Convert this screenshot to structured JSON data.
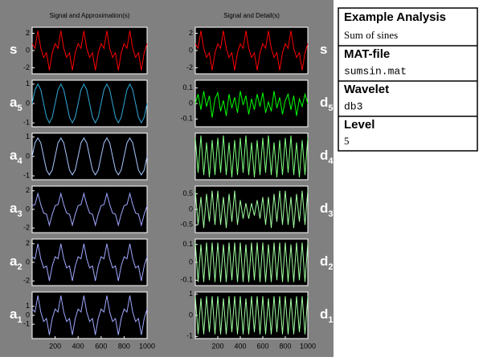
{
  "info": {
    "title": "Example Analysis",
    "subtitle": "Sum of sines",
    "file_label": "MAT-file",
    "file": "sumsin.mat",
    "wavelet_label": "Wavelet",
    "wavelet": "db3",
    "level_label": "Level",
    "level": "5"
  },
  "chart_data": [
    {
      "type": "line",
      "title": "Signal and Approximation(s)",
      "label": "s",
      "color": "#ff0000",
      "xlim": [
        0,
        1000
      ],
      "ylim": [
        -2.7,
        2.7
      ],
      "yticks": [
        -2,
        0,
        2
      ],
      "x": [
        0,
        25,
        50,
        75,
        100,
        125,
        150,
        175,
        200,
        225,
        250,
        275,
        300,
        325,
        350,
        375,
        400,
        425,
        450,
        475,
        500,
        525,
        550,
        575,
        600,
        625,
        650,
        675,
        700,
        725,
        750,
        775,
        800,
        825,
        850,
        875,
        900,
        925,
        950,
        975,
        1000
      ],
      "values": [
        0.8,
        0.26,
        2.3,
        0.26,
        -0.8,
        -0.26,
        -2.3,
        -0.26,
        0.8,
        0.26,
        2.3,
        0.26,
        -0.8,
        -0.26,
        -2.3,
        -0.26,
        0.8,
        0.26,
        2.3,
        0.26,
        -0.8,
        -0.26,
        -2.3,
        -0.26,
        0.8,
        0.26,
        2.3,
        0.26,
        -0.8,
        -0.26,
        -2.3,
        -0.26,
        0.8,
        0.26,
        2.3,
        0.26,
        -0.8,
        -0.26,
        -2.3,
        -0.26,
        0.8
      ]
    },
    {
      "type": "line",
      "label": "a",
      "sub": "5",
      "color": "#30a8d8",
      "xlim": [
        0,
        1000
      ],
      "ylim": [
        -1.2,
        1.2
      ],
      "yticks": [
        -1,
        0,
        1
      ],
      "x": [
        0,
        25,
        50,
        75,
        100,
        125,
        150,
        175,
        200,
        225,
        250,
        275,
        300,
        325,
        350,
        375,
        400,
        425,
        450,
        475,
        500,
        525,
        550,
        575,
        600,
        625,
        650,
        675,
        700,
        725,
        750,
        775,
        800,
        825,
        850,
        875,
        900,
        925,
        950,
        975,
        1000
      ],
      "values": [
        0,
        0.71,
        1,
        0.71,
        0,
        -0.71,
        -1,
        -0.71,
        0,
        0.71,
        1,
        0.71,
        0,
        -0.71,
        -1,
        -0.71,
        0,
        0.71,
        1,
        0.71,
        0,
        -0.71,
        -1,
        -0.71,
        0,
        0.71,
        1,
        0.71,
        0,
        -0.71,
        -1,
        -0.71,
        0,
        0.71,
        1,
        0.71,
        0,
        -0.71,
        -1,
        -0.71,
        0
      ]
    },
    {
      "type": "line",
      "label": "a",
      "sub": "4",
      "color": "#a8c8ff",
      "xlim": [
        0,
        1000
      ],
      "ylim": [
        -1.2,
        1.2
      ],
      "yticks": [
        -1,
        0,
        1
      ],
      "x": [
        0,
        25,
        50,
        75,
        100,
        125,
        150,
        175,
        200,
        225,
        250,
        275,
        300,
        325,
        350,
        375,
        400,
        425,
        450,
        475,
        500,
        525,
        550,
        575,
        600,
        625,
        650,
        675,
        700,
        725,
        750,
        775,
        800,
        825,
        850,
        875,
        900,
        925,
        950,
        975,
        1000
      ],
      "values": [
        0,
        0.7,
        0.95,
        0.7,
        0,
        -0.7,
        -0.95,
        -0.7,
        0,
        0.7,
        0.95,
        0.7,
        0,
        -0.7,
        -0.95,
        -0.7,
        0,
        0.7,
        0.95,
        0.7,
        0,
        -0.7,
        -0.95,
        -0.7,
        0,
        0.7,
        0.95,
        0.7,
        0,
        -0.7,
        -0.95,
        -0.7,
        0,
        0.7,
        0.95,
        0.7,
        0,
        -0.7,
        -0.95,
        -0.7,
        0
      ]
    },
    {
      "type": "line",
      "label": "a",
      "sub": "3",
      "color": "#a0a8ff",
      "xlim": [
        0,
        1000
      ],
      "ylim": [
        -2.5,
        2.5
      ],
      "yticks": [
        -2,
        0,
        2
      ],
      "x": [
        0,
        25,
        50,
        75,
        100,
        125,
        150,
        175,
        200,
        225,
        250,
        275,
        300,
        325,
        350,
        375,
        400,
        425,
        450,
        475,
        500,
        525,
        550,
        575,
        600,
        625,
        650,
        675,
        700,
        725,
        750,
        775,
        800,
        825,
        850,
        875,
        900,
        925,
        950,
        975,
        1000
      ],
      "values": [
        0.4,
        0.52,
        1.7,
        0.52,
        -0.4,
        -0.52,
        -1.7,
        -0.52,
        0.4,
        0.52,
        1.7,
        0.52,
        -0.4,
        -0.52,
        -1.7,
        -0.52,
        0.4,
        0.52,
        1.7,
        0.52,
        -0.4,
        -0.52,
        -1.7,
        -0.52,
        0.4,
        0.52,
        1.7,
        0.52,
        -0.4,
        -0.52,
        -1.7,
        -0.52,
        0.4,
        0.52,
        1.7,
        0.52,
        -0.4,
        -0.52,
        -1.7,
        -0.52,
        0.4
      ]
    },
    {
      "type": "line",
      "label": "a",
      "sub": "2",
      "color": "#a0a8ff",
      "xlim": [
        0,
        1000
      ],
      "ylim": [
        -2.5,
        2.5
      ],
      "yticks": [
        -2,
        0,
        2
      ],
      "x": [
        0,
        25,
        50,
        75,
        100,
        125,
        150,
        175,
        200,
        225,
        250,
        275,
        300,
        325,
        350,
        375,
        400,
        425,
        450,
        475,
        500,
        525,
        550,
        575,
        600,
        625,
        650,
        675,
        700,
        725,
        750,
        775,
        800,
        825,
        850,
        875,
        900,
        925,
        950,
        975,
        1000
      ],
      "values": [
        0.6,
        0.39,
        2,
        0.39,
        -0.6,
        -0.39,
        -2,
        -0.39,
        0.6,
        0.39,
        2,
        0.39,
        -0.6,
        -0.39,
        -2,
        -0.39,
        0.6,
        0.39,
        2,
        0.39,
        -0.6,
        -0.39,
        -2,
        -0.39,
        0.6,
        0.39,
        2,
        0.39,
        -0.6,
        -0.39,
        -2,
        -0.39,
        0.6,
        0.39,
        2,
        0.39,
        -0.6,
        -0.39,
        -2,
        -0.39,
        0.6
      ]
    },
    {
      "type": "line",
      "label": "a",
      "sub": "1",
      "color": "#a0a8ff",
      "xlim": [
        0,
        1000
      ],
      "ylim": [
        -2.6,
        2.6
      ],
      "yticks": [
        -1,
        0,
        1
      ],
      "xticks": [
        200,
        400,
        600,
        800,
        1000
      ],
      "x": [
        0,
        25,
        50,
        75,
        100,
        125,
        150,
        175,
        200,
        225,
        250,
        275,
        300,
        325,
        350,
        375,
        400,
        425,
        450,
        475,
        500,
        525,
        550,
        575,
        600,
        625,
        650,
        675,
        700,
        725,
        750,
        775,
        800,
        825,
        850,
        875,
        900,
        925,
        950,
        975,
        1000
      ],
      "values": [
        0.7,
        0.36,
        2.2,
        0.36,
        -0.7,
        -0.36,
        -2.2,
        -0.36,
        0.7,
        0.36,
        2.2,
        0.36,
        -0.7,
        -0.36,
        -2.2,
        -0.36,
        0.7,
        0.36,
        2.2,
        0.36,
        -0.7,
        -0.36,
        -2.2,
        -0.36,
        0.7,
        0.36,
        2.2,
        0.36,
        -0.7,
        -0.36,
        -2.2,
        -0.36,
        0.7,
        0.36,
        2.2,
        0.36,
        -0.7,
        -0.36,
        -2.2,
        -0.36,
        0.7
      ]
    },
    {
      "type": "line",
      "title": "Signal and Detail(s)",
      "label": "s",
      "color": "#ff0000",
      "xlim": [
        0,
        1000
      ],
      "ylim": [
        -2.7,
        2.7
      ],
      "yticks": [
        -2,
        0,
        2
      ],
      "x": [
        0,
        25,
        50,
        75,
        100,
        125,
        150,
        175,
        200,
        225,
        250,
        275,
        300,
        325,
        350,
        375,
        400,
        425,
        450,
        475,
        500,
        525,
        550,
        575,
        600,
        625,
        650,
        675,
        700,
        725,
        750,
        775,
        800,
        825,
        850,
        875,
        900,
        925,
        950,
        975,
        1000
      ],
      "values": [
        0.8,
        0.26,
        2.3,
        0.26,
        -0.8,
        -0.26,
        -2.3,
        -0.26,
        0.8,
        0.26,
        2.3,
        0.26,
        -0.8,
        -0.26,
        -2.3,
        -0.26,
        0.8,
        0.26,
        2.3,
        0.26,
        -0.8,
        -0.26,
        -2.3,
        -0.26,
        0.8,
        0.26,
        2.3,
        0.26,
        -0.8,
        -0.26,
        -2.3,
        -0.26,
        0.8,
        0.26,
        2.3,
        0.26,
        -0.8,
        -0.26,
        -2.3,
        -0.26,
        0.8
      ]
    },
    {
      "type": "line",
      "label": "d",
      "sub": "5",
      "color": "#00ff00",
      "xlim": [
        0,
        1000
      ],
      "ylim": [
        -0.15,
        0.15
      ],
      "yticks": [
        -0.1,
        0,
        0.1
      ],
      "x": [
        0,
        25,
        50,
        75,
        100,
        125,
        150,
        175,
        200,
        225,
        250,
        275,
        300,
        325,
        350,
        375,
        400,
        425,
        450,
        475,
        500,
        525,
        550,
        575,
        600,
        625,
        650,
        675,
        700,
        725,
        750,
        775,
        800,
        825,
        850,
        875,
        900,
        925,
        950,
        975,
        1000
      ],
      "values": [
        0,
        0.06,
        -0.04,
        0.08,
        -0.02,
        0.05,
        -0.09,
        0.03,
        0.07,
        -0.05,
        0.02,
        -0.08,
        0.06,
        -0.03,
        0.04,
        -0.06,
        0.08,
        -0.01,
        0.05,
        -0.07,
        0.03,
        -0.04,
        0.06,
        -0.02,
        0.07,
        -0.06,
        0.01,
        -0.05,
        0.08,
        -0.03,
        0.04,
        -0.07,
        0.02,
        0.06,
        -0.04,
        0.05,
        -0.08,
        0.03,
        -0.02,
        0.06,
        0
      ]
    },
    {
      "type": "line",
      "label": "d",
      "sub": "4",
      "color": "#80ff80",
      "xlim": [
        0,
        1000
      ],
      "ylim": [
        -1,
        1
      ],
      "x": [
        0,
        25,
        50,
        75,
        100,
        125,
        150,
        175,
        200,
        225,
        250,
        275,
        300,
        325,
        350,
        375,
        400,
        425,
        450,
        475,
        500,
        525,
        550,
        575,
        600,
        625,
        650,
        675,
        700,
        725,
        750,
        775,
        800,
        825,
        850,
        875,
        900,
        925,
        950,
        975,
        1000
      ],
      "values": [
        0.8,
        -0.7,
        0.9,
        -0.8,
        0.6,
        -0.9,
        0.7,
        -0.8,
        0.8,
        -0.7,
        0.9,
        -0.8,
        0.6,
        -0.9,
        0.7,
        -0.8,
        0.8,
        -0.7,
        0.9,
        -0.8,
        0.6,
        -0.9,
        0.7,
        -0.8,
        0.8,
        -0.7,
        0.9,
        -0.8,
        0.6,
        -0.9,
        0.7,
        -0.8,
        0.8,
        -0.7,
        0.9,
        -0.8,
        0.6,
        -0.9,
        0.7,
        -0.8,
        0.8
      ]
    },
    {
      "type": "line",
      "label": "d",
      "sub": "3",
      "color": "#a0ffa0",
      "xlim": [
        0,
        1000
      ],
      "ylim": [
        -0.75,
        0.75
      ],
      "yticks": [
        -0.5,
        0,
        0.5
      ],
      "x": [
        0,
        25,
        50,
        75,
        100,
        125,
        150,
        175,
        200,
        225,
        250,
        275,
        300,
        325,
        350,
        375,
        400,
        425,
        450,
        475,
        500,
        525,
        550,
        575,
        600,
        625,
        650,
        675,
        700,
        725,
        750,
        775,
        800,
        825,
        850,
        875,
        900,
        925,
        950,
        975,
        1000
      ],
      "values": [
        0.6,
        -0.5,
        0.4,
        -0.6,
        0.5,
        -0.4,
        0.6,
        -0.5,
        0.6,
        -0.5,
        0.4,
        -0.6,
        0.5,
        -0.4,
        0.6,
        -0.5,
        0.3,
        -0.3,
        0.2,
        -0.3,
        0.2,
        -0.2,
        0.3,
        -0.3,
        0.4,
        -0.5,
        0.4,
        -0.6,
        0.5,
        -0.4,
        0.6,
        -0.5,
        0.6,
        -0.5,
        0.4,
        -0.6,
        0.5,
        -0.4,
        0.6,
        -0.5,
        0.6
      ]
    },
    {
      "type": "line",
      "label": "d",
      "sub": "2",
      "color": "#a0ffa0",
      "xlim": [
        0,
        1000
      ],
      "ylim": [
        -0.13,
        0.13
      ],
      "yticks": [
        -0.1,
        0,
        0.1
      ],
      "x": [
        0,
        25,
        50,
        75,
        100,
        125,
        150,
        175,
        200,
        225,
        250,
        275,
        300,
        325,
        350,
        375,
        400,
        425,
        450,
        475,
        500,
        525,
        550,
        575,
        600,
        625,
        650,
        675,
        700,
        725,
        750,
        775,
        800,
        825,
        850,
        875,
        900,
        925,
        950,
        975,
        1000
      ],
      "values": [
        0.11,
        -0.11,
        0.1,
        -0.11,
        0.11,
        -0.1,
        0.11,
        -0.11,
        0.11,
        -0.11,
        0.1,
        -0.11,
        0.11,
        -0.1,
        0.11,
        -0.11,
        0.11,
        -0.11,
        0.1,
        -0.11,
        0.11,
        -0.1,
        0.11,
        -0.11,
        0.11,
        -0.11,
        0.1,
        -0.11,
        0.11,
        -0.1,
        0.11,
        -0.11,
        0.11,
        -0.11,
        0.1,
        -0.11,
        0.11,
        -0.1,
        0.11,
        -0.11,
        0.11
      ]
    },
    {
      "type": "line",
      "label": "d",
      "sub": "1",
      "color": "#a0ffa0",
      "xlim": [
        0,
        1000
      ],
      "ylim": [
        -1.1,
        1.1
      ],
      "yticks": [
        -1,
        0,
        1
      ],
      "xticks": [
        200,
        400,
        600,
        800,
        1000
      ],
      "x": [
        0,
        25,
        50,
        75,
        100,
        125,
        150,
        175,
        200,
        225,
        250,
        275,
        300,
        325,
        350,
        375,
        400,
        425,
        450,
        475,
        500,
        525,
        550,
        575,
        600,
        625,
        650,
        675,
        700,
        725,
        750,
        775,
        800,
        825,
        850,
        875,
        900,
        925,
        950,
        975,
        1000
      ],
      "values": [
        0.9,
        -0.9,
        0.8,
        -0.9,
        0.9,
        -0.8,
        0.9,
        -0.9,
        0.9,
        -0.9,
        0.8,
        -0.9,
        0.9,
        -0.8,
        0.9,
        -0.9,
        0.9,
        -0.9,
        0.8,
        -0.9,
        0.9,
        -0.8,
        0.9,
        -0.9,
        0.9,
        -0.9,
        0.8,
        -0.9,
        0.9,
        -0.8,
        0.9,
        -0.9,
        0.9,
        -0.9,
        0.8,
        -0.9,
        0.9,
        -0.8,
        0.9,
        -0.9,
        0.9
      ]
    }
  ]
}
